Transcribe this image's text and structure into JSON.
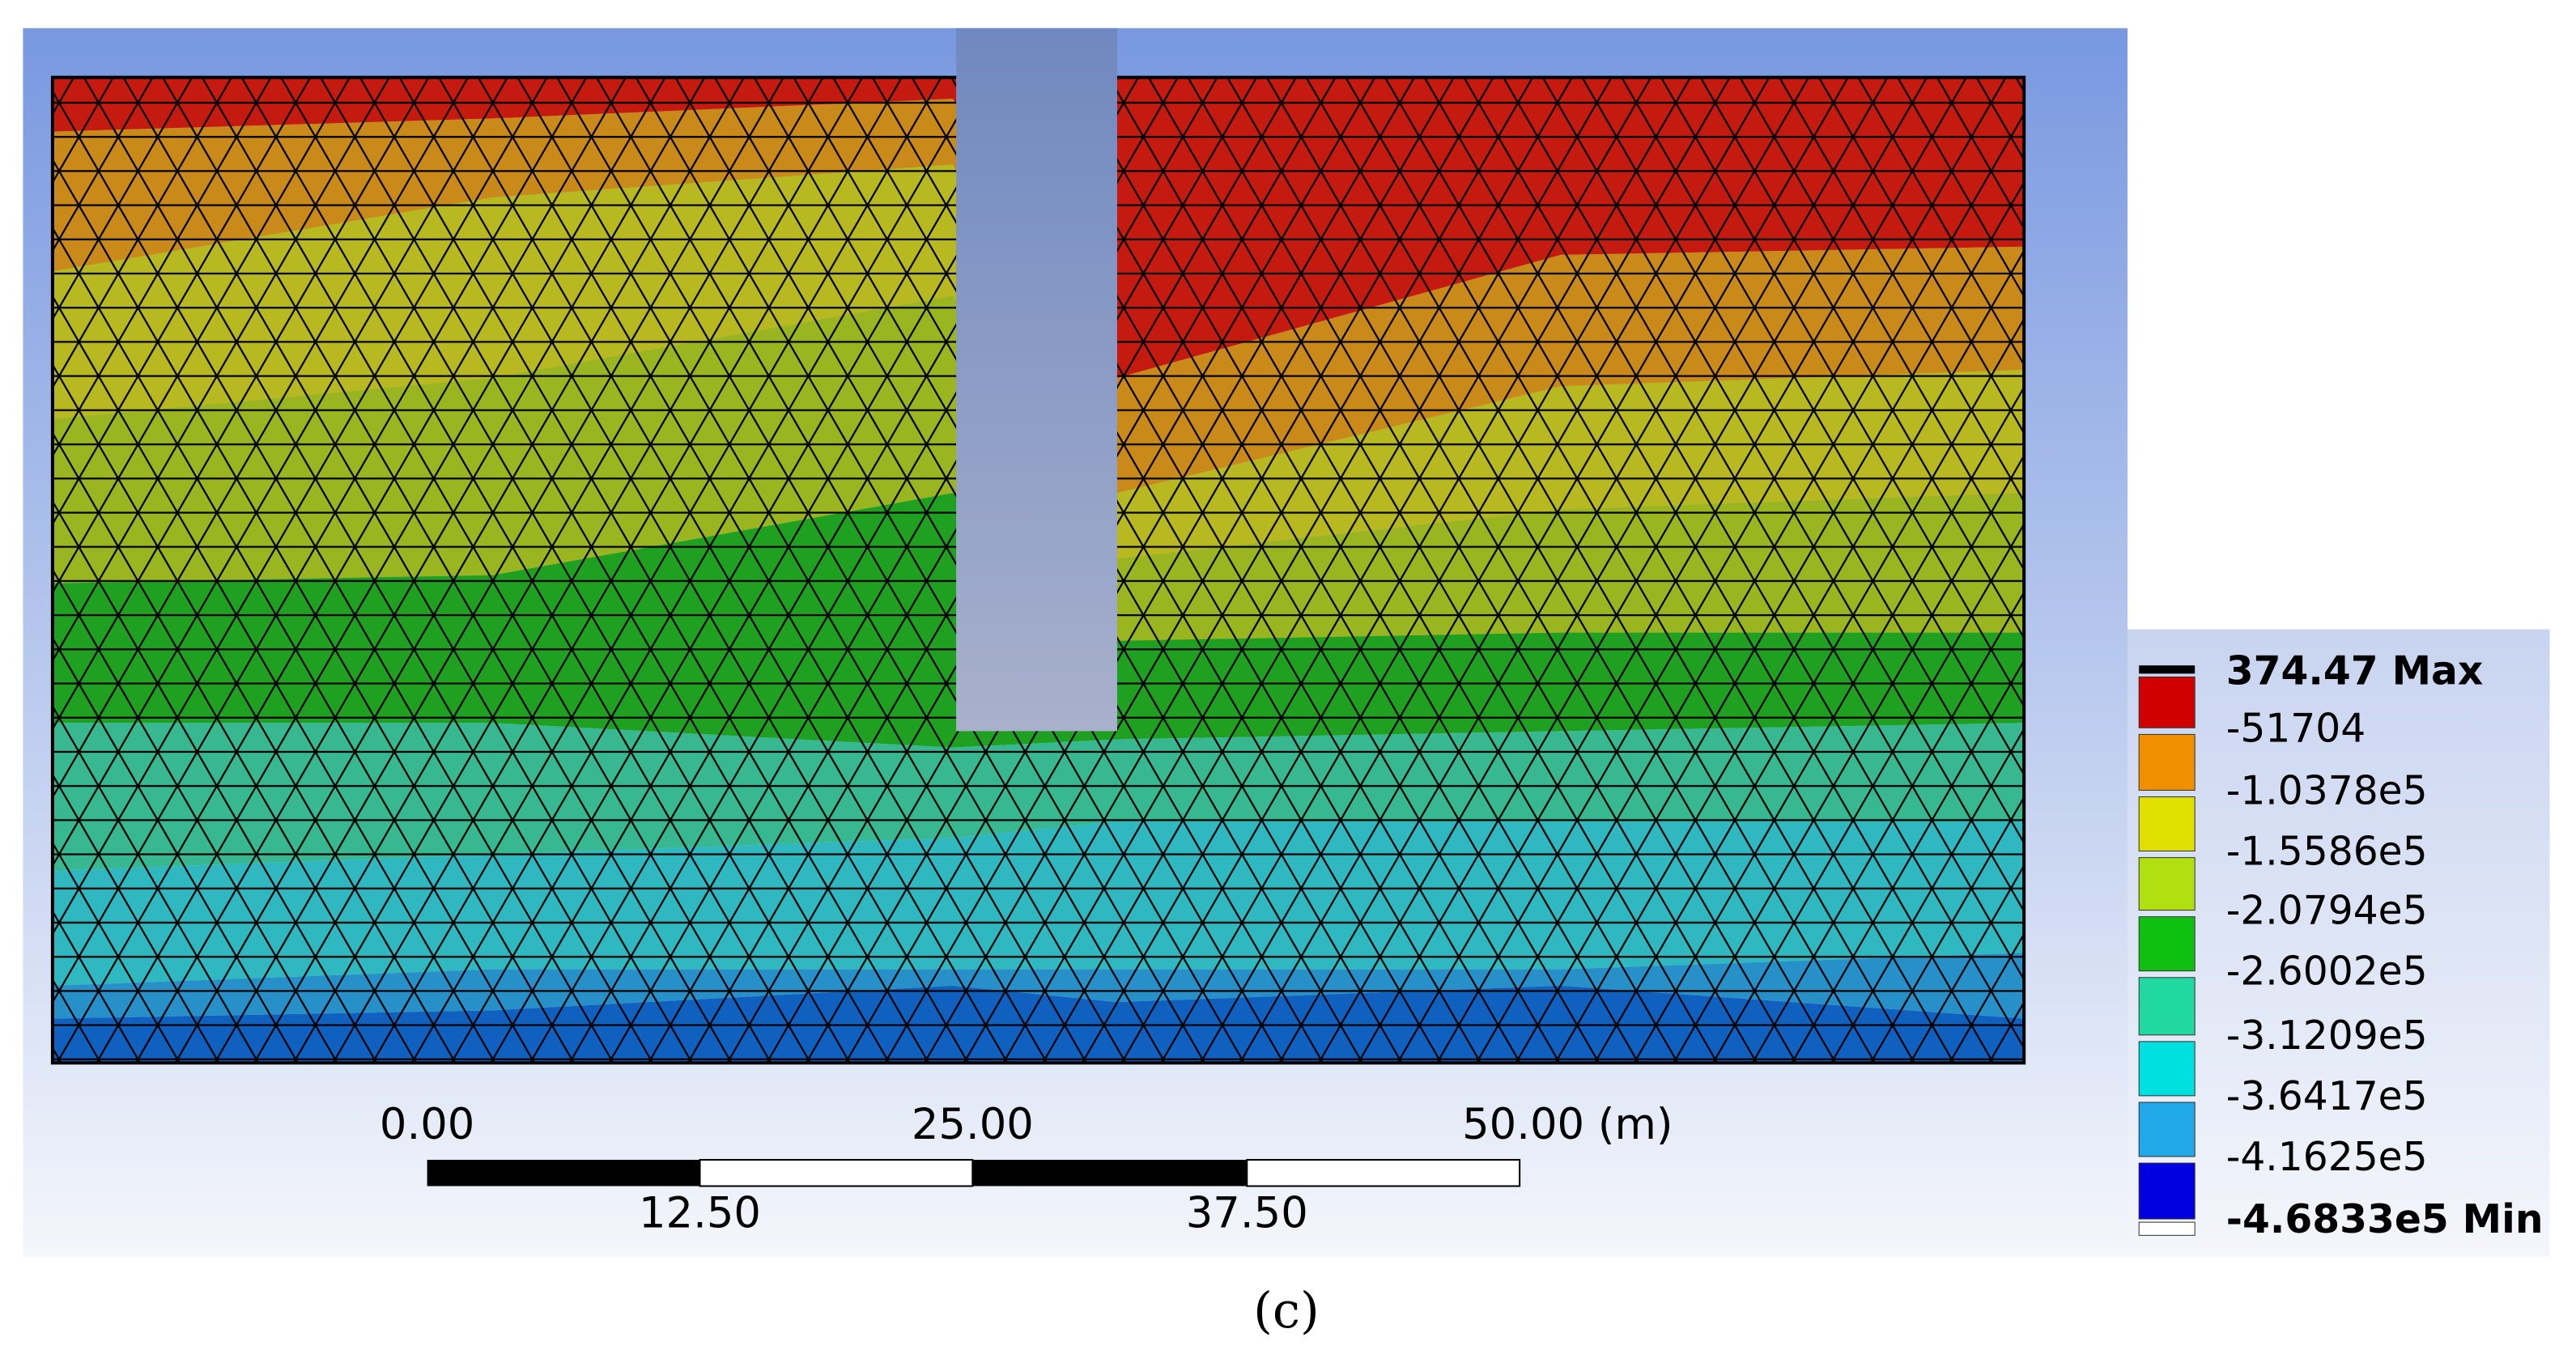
{
  "legend": {
    "labels": [
      "374.47 Max",
      "-51704",
      "-1.0378e5",
      "-1.5586e5",
      "-2.0794e5",
      "-2.6002e5",
      "-3.1209e5",
      "-3.6417e5",
      "-4.1625e5",
      "-4.6833e5 Min"
    ]
  },
  "scale_bar": {
    "labels": [
      "0.00",
      "25.00",
      "50.00 (m)",
      "12.50",
      "37.50"
    ]
  },
  "caption": "(c)"
}
